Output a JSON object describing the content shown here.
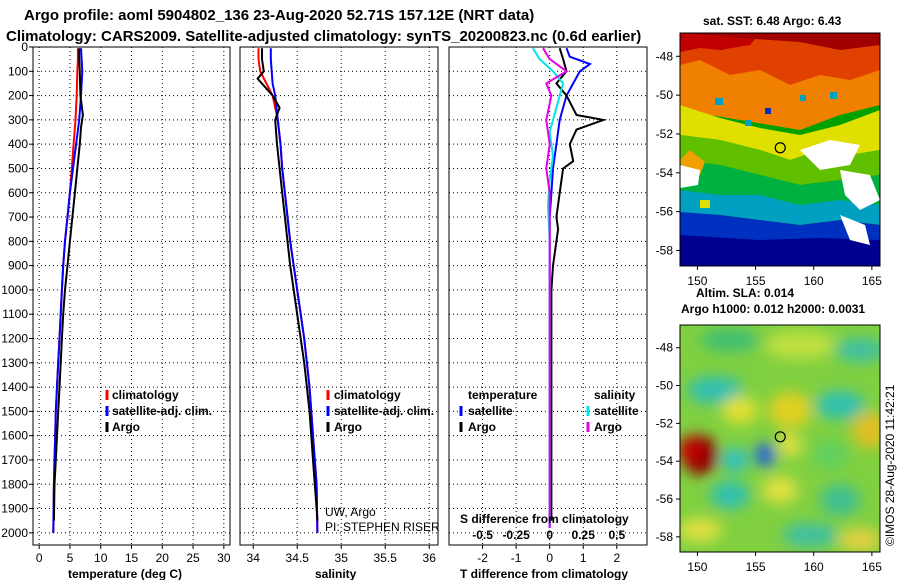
{
  "figure": {
    "title_line1": "Argo profile: aoml 5904802_136 23-Aug-2020 52.71S 157.12E (NRT data)",
    "title_line2": "Climatology: CARS2009. Satellite-adjusted climatology: synTS_20200823.nc (0.6d earlier)",
    "credit": "UW, Argo",
    "pi": "PI: STEPHEN RISER",
    "watermark": "©IMOS 28-Aug-2020 11:42:21"
  },
  "colors": {
    "climatology": "#ff0000",
    "satellite": "#0000ff",
    "argo": "#000000",
    "t_sat": "#0000ff",
    "s_sat": "#00e5e5",
    "s_argo": "#e600e6"
  },
  "chart_data": [
    {
      "type": "line",
      "xlabel": "temperature (deg C)",
      "ylabel": "",
      "xlim": [
        -1,
        31
      ],
      "ylim": [
        2050,
        0
      ],
      "xticks": [
        "0",
        "5",
        "10",
        "15",
        "20",
        "25",
        "30"
      ],
      "xtick_values": [
        0,
        5,
        10,
        15,
        20,
        25,
        30
      ],
      "yticks": [
        "0",
        "100",
        "200",
        "300",
        "400",
        "500",
        "600",
        "700",
        "800",
        "900",
        "1000",
        "1100",
        "1200",
        "1300",
        "1400",
        "1500",
        "1600",
        "1700",
        "1800",
        "1900",
        "2000"
      ],
      "grid": true,
      "legend": [
        "climatology",
        "satellite-adj. clim.",
        "Argo"
      ],
      "legend_position": "bottom-right",
      "series": [
        {
          "name": "climatology",
          "color_key": "climatology",
          "x": [
            6.3,
            6.3,
            6.2,
            6.1,
            5.9,
            5.6,
            5.3,
            5.0,
            4.6,
            4.2,
            3.9,
            3.7,
            3.5,
            3.3,
            3.1,
            2.9,
            2.7,
            2.6,
            2.5,
            2.4,
            2.3
          ],
          "y": [
            5,
            50,
            100,
            200,
            300,
            400,
            500,
            600,
            700,
            800,
            900,
            1000,
            1100,
            1200,
            1300,
            1400,
            1500,
            1600,
            1700,
            1800,
            2000
          ]
        },
        {
          "name": "satellite-adj. clim.",
          "color_key": "satellite",
          "x": [
            6.8,
            6.9,
            7.0,
            6.8,
            6.5,
            6.0,
            5.5,
            5.0,
            4.6,
            4.2,
            3.9,
            3.7,
            3.5,
            3.3,
            3.1,
            2.9,
            2.7,
            2.6,
            2.5,
            2.4,
            2.3
          ],
          "y": [
            5,
            50,
            100,
            200,
            300,
            400,
            500,
            600,
            700,
            800,
            900,
            1000,
            1100,
            1200,
            1300,
            1400,
            1500,
            1600,
            1700,
            1800,
            2000
          ]
        },
        {
          "name": "Argo",
          "color_key": "argo",
          "x": [
            6.5,
            6.5,
            6.6,
            6.7,
            7.1,
            6.8,
            6.6,
            6.2,
            5.8,
            5.4,
            5.0,
            4.6,
            4.2,
            3.9,
            3.7,
            3.5,
            3.3,
            3.1,
            2.9,
            2.7,
            2.5,
            2.4
          ],
          "y": [
            5,
            50,
            100,
            200,
            280,
            330,
            400,
            500,
            600,
            700,
            800,
            900,
            1000,
            1100,
            1200,
            1300,
            1400,
            1500,
            1600,
            1700,
            1800,
            1950
          ]
        }
      ]
    },
    {
      "type": "line",
      "xlabel": "salinity",
      "ylabel": "",
      "xlim": [
        33.85,
        36.1
      ],
      "ylim": [
        2050,
        0
      ],
      "xticks": [
        "34",
        "34.5",
        "35",
        "35.5",
        "36"
      ],
      "xtick_values": [
        34,
        34.5,
        35,
        35.5,
        36
      ],
      "grid": true,
      "legend": [
        "climatology",
        "satellite-adj. clim.",
        "Argo"
      ],
      "legend_position": "bottom-right",
      "series": [
        {
          "name": "climatology",
          "color_key": "climatology",
          "x": [
            34.06,
            34.06,
            34.08,
            34.15,
            34.22,
            34.28,
            34.31,
            34.33,
            34.36,
            34.39,
            34.42,
            34.46,
            34.5,
            34.54,
            34.58,
            34.61,
            34.64,
            34.66,
            34.68,
            34.7,
            34.72,
            34.73
          ],
          "y": [
            5,
            50,
            100,
            150,
            200,
            300,
            400,
            500,
            600,
            700,
            800,
            900,
            1000,
            1100,
            1200,
            1300,
            1400,
            1500,
            1600,
            1700,
            1800,
            2000
          ]
        },
        {
          "name": "satellite-adj. clim.",
          "color_key": "satellite",
          "x": [
            34.2,
            34.2,
            34.21,
            34.22,
            34.25,
            34.28,
            34.31,
            34.33,
            34.36,
            34.39,
            34.42,
            34.46,
            34.5,
            34.54,
            34.58,
            34.61,
            34.64,
            34.66,
            34.68,
            34.7,
            34.72,
            34.73
          ],
          "y": [
            5,
            50,
            100,
            150,
            200,
            300,
            400,
            500,
            600,
            700,
            800,
            900,
            1000,
            1100,
            1200,
            1300,
            1400,
            1500,
            1600,
            1700,
            1800,
            2000
          ]
        },
        {
          "name": "Argo",
          "color_key": "argo",
          "x": [
            34.1,
            34.1,
            34.12,
            34.05,
            34.22,
            34.3,
            34.25,
            34.27,
            34.3,
            34.33,
            34.36,
            34.39,
            34.42,
            34.46,
            34.5,
            34.54,
            34.58,
            34.61,
            34.64,
            34.66,
            34.68,
            34.7,
            34.72,
            34.73
          ],
          "y": [
            5,
            50,
            100,
            130,
            200,
            250,
            300,
            400,
            500,
            600,
            700,
            800,
            900,
            1000,
            1100,
            1200,
            1300,
            1400,
            1500,
            1600,
            1700,
            1800,
            1900,
            1950
          ]
        }
      ]
    },
    {
      "type": "line",
      "xlabel": "T difference from climatology",
      "ylabel": "",
      "xlim": [
        -3,
        2.9
      ],
      "ylim": [
        2050,
        0
      ],
      "xticks": [
        "-2",
        "-1",
        "0",
        "1",
        "2"
      ],
      "xtick_values": [
        -2,
        -1,
        0,
        1,
        2
      ],
      "top_xlabel": "S difference from climatology",
      "top_xticks": [
        "-0.5",
        "-0.25",
        "0",
        "0.25",
        "0.5"
      ],
      "top_xtick_values": [
        -2,
        -1,
        0,
        1,
        2
      ],
      "grid": true,
      "legend_left_title": "temperature",
      "legend_left": [
        "satellite",
        "Argo"
      ],
      "legend_right_title": "salinity",
      "legend_right": [
        "satellite",
        "Argo"
      ],
      "legend_position": "bottom",
      "series": [
        {
          "name": "satellite",
          "color_key": "t_sat",
          "x": [
            0.5,
            0.6,
            1.2,
            0.9,
            0.7,
            0.5,
            0.3,
            0.2,
            0.1,
            0.05,
            0.0,
            0.0,
            0.0,
            0.0,
            0.0,
            0.0,
            0.0,
            0.0,
            0.0,
            0.0
          ],
          "y": [
            5,
            40,
            70,
            100,
            150,
            200,
            300,
            400,
            500,
            600,
            700,
            800,
            900,
            1000,
            1200,
            1400,
            1600,
            1800,
            1900,
            1980
          ]
        },
        {
          "name": "Argo",
          "color_key": "argo",
          "x": [
            0.3,
            0.4,
            0.5,
            0.2,
            0.5,
            0.8,
            1.6,
            0.8,
            0.6,
            0.7,
            0.4,
            0.3,
            0.2,
            0.25,
            0.2,
            0.1,
            0.05,
            0.05,
            0.05,
            0.05
          ],
          "y": [
            5,
            50,
            100,
            150,
            200,
            280,
            300,
            340,
            400,
            470,
            500,
            600,
            700,
            750,
            800,
            900,
            1000,
            1200,
            1500,
            1950
          ]
        },
        {
          "name": "satellite",
          "color_key": "s_sat",
          "x": [
            -0.5,
            -0.3,
            0.1,
            0.4,
            0.2,
            0.0,
            0.1,
            0.0,
            -0.05,
            0.0,
            0.0,
            0.0,
            0.0,
            0.0,
            0.0,
            0.0
          ],
          "y": [
            5,
            50,
            100,
            150,
            250,
            350,
            450,
            550,
            650,
            800,
            1000,
            1200,
            1400,
            1600,
            1800,
            1980
          ]
        },
        {
          "name": "Argo",
          "color_key": "s_argo",
          "x": [
            -0.2,
            0.0,
            0.5,
            -0.1,
            0.05,
            -0.1,
            0.0,
            -0.1,
            0.0,
            0.0,
            0.0,
            0.0,
            0.0,
            0.0,
            0.0,
            0.0,
            0.0
          ],
          "y": [
            5,
            50,
            100,
            150,
            200,
            300,
            400,
            500,
            600,
            700,
            800,
            1000,
            1200,
            1400,
            1600,
            1800,
            1980
          ]
        }
      ]
    },
    {
      "type": "heatmap",
      "title": "sat. SST: 6.48 Argo: 6.43",
      "xticks": [
        "150",
        "155",
        "160",
        "165"
      ],
      "xtick_values": [
        150,
        155,
        160,
        165
      ],
      "yticks": [
        "-48",
        "-50",
        "-52",
        "-54",
        "-56",
        "-58"
      ],
      "ytick_values": [
        -48,
        -50,
        -52,
        -54,
        -56,
        -58
      ],
      "xlim": [
        148.5,
        165.7
      ],
      "ylim": [
        -58.8,
        -46.8
      ],
      "float_position": {
        "lon": 157.12,
        "lat": -52.71
      }
    },
    {
      "type": "heatmap",
      "title": "Altim. SLA: 0.014",
      "subtitle": "Argo h1000: 0.012 h2000: 0.0031",
      "xticks": [
        "150",
        "155",
        "160",
        "165"
      ],
      "xtick_values": [
        150,
        155,
        160,
        165
      ],
      "yticks": [
        "-48",
        "-50",
        "-52",
        "-54",
        "-56",
        "-58"
      ],
      "ytick_values": [
        -48,
        -50,
        -52,
        -54,
        -56,
        -58
      ],
      "xlim": [
        148.5,
        165.7
      ],
      "ylim": [
        -58.8,
        -46.8
      ],
      "float_position": {
        "lon": 157.12,
        "lat": -52.71
      }
    }
  ]
}
